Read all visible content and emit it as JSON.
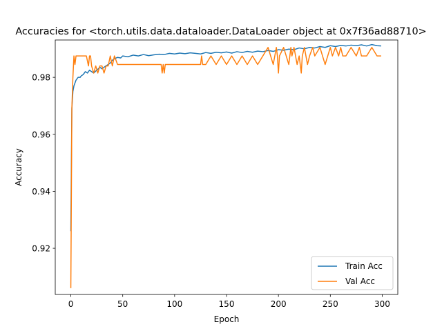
{
  "chart_data": {
    "type": "line",
    "title": "Accuracies for <torch.utils.data.dataloader.DataLoader object at 0x7f36ad88710>",
    "xlabel": "Epoch",
    "ylabel": "Accuracy",
    "xlim": [
      -15,
      315
    ],
    "ylim": [
      0.9038,
      0.9931
    ],
    "xticks": [
      0,
      50,
      100,
      150,
      200,
      250,
      300
    ],
    "xtick_labels": [
      "0",
      "50",
      "100",
      "150",
      "200",
      "250",
      "300"
    ],
    "yticks": [
      0.92,
      0.94,
      0.96,
      0.98
    ],
    "ytick_labels": [
      "0.92",
      "0.94",
      "0.96",
      "0.98"
    ],
    "grid": false,
    "legend_position": "lower right",
    "series": [
      {
        "name": "Train Acc",
        "color": "#1f77b4",
        "x": [
          0,
          1,
          2,
          3,
          4,
          5,
          6,
          7,
          8,
          9,
          10,
          12,
          14,
          16,
          18,
          20,
          22,
          25,
          28,
          30,
          33,
          36,
          38,
          40,
          42,
          45,
          48,
          50,
          55,
          60,
          65,
          70,
          75,
          80,
          85,
          90,
          95,
          100,
          105,
          110,
          115,
          120,
          125,
          130,
          135,
          140,
          145,
          150,
          155,
          160,
          165,
          170,
          175,
          180,
          185,
          190,
          195,
          200,
          205,
          210,
          215,
          220,
          225,
          230,
          235,
          240,
          245,
          250,
          255,
          260,
          265,
          270,
          275,
          280,
          285,
          290,
          295,
          299
        ],
        "y": [
          0.926,
          0.969,
          0.975,
          0.977,
          0.978,
          0.979,
          0.9795,
          0.98,
          0.98,
          0.98,
          0.9805,
          0.981,
          0.982,
          0.9815,
          0.9825,
          0.982,
          0.9815,
          0.9825,
          0.9835,
          0.983,
          0.9838,
          0.9845,
          0.985,
          0.986,
          0.9865,
          0.987,
          0.9868,
          0.9875,
          0.9872,
          0.9878,
          0.9875,
          0.988,
          0.9876,
          0.9879,
          0.9881,
          0.988,
          0.9884,
          0.9882,
          0.9885,
          0.9883,
          0.9886,
          0.9884,
          0.9882,
          0.9887,
          0.9884,
          0.9888,
          0.9886,
          0.9889,
          0.9885,
          0.989,
          0.9887,
          0.9891,
          0.9888,
          0.9892,
          0.989,
          0.9894,
          0.9891,
          0.9897,
          0.9895,
          0.9899,
          0.9897,
          0.9903,
          0.99,
          0.9905,
          0.9903,
          0.9908,
          0.9905,
          0.9911,
          0.9908,
          0.9912,
          0.991,
          0.9913,
          0.9911,
          0.9914,
          0.991,
          0.9915,
          0.9911,
          0.991
        ]
      },
      {
        "name": "Val Acc",
        "color": "#ff7f0e",
        "x": [
          0,
          1,
          2,
          3,
          4,
          5,
          6,
          7,
          8,
          10,
          12,
          15,
          17,
          18,
          19,
          20,
          22,
          24,
          26,
          28,
          30,
          32,
          34,
          36,
          38,
          40,
          42,
          45,
          50,
          60,
          70,
          80,
          87,
          88,
          89,
          90,
          91,
          95,
          100,
          110,
          120,
          125,
          126,
          127,
          130,
          135,
          140,
          145,
          150,
          155,
          160,
          165,
          170,
          175,
          180,
          185,
          190,
          195,
          198,
          199,
          200,
          201,
          205,
          210,
          212,
          213,
          215,
          218,
          220,
          222,
          223,
          225,
          228,
          230,
          233,
          235,
          240,
          245,
          250,
          252,
          255,
          258,
          260,
          262,
          265,
          270,
          275,
          278,
          280,
          285,
          290,
          295,
          299
        ],
        "y": [
          0.906,
          0.969,
          0.98,
          0.9875,
          0.9845,
          0.9875,
          0.9875,
          0.9875,
          0.9875,
          0.9875,
          0.9875,
          0.9875,
          0.984,
          0.9875,
          0.9875,
          0.984,
          0.9815,
          0.984,
          0.9815,
          0.984,
          0.984,
          0.9815,
          0.984,
          0.984,
          0.9875,
          0.984,
          0.9875,
          0.9845,
          0.9845,
          0.9845,
          0.9845,
          0.9845,
          0.9845,
          0.9815,
          0.9845,
          0.9815,
          0.9845,
          0.9845,
          0.9845,
          0.9845,
          0.9845,
          0.9845,
          0.9875,
          0.9845,
          0.9845,
          0.9875,
          0.9845,
          0.9875,
          0.9845,
          0.9875,
          0.9845,
          0.9875,
          0.9845,
          0.9875,
          0.9845,
          0.9875,
          0.9905,
          0.9845,
          0.9905,
          0.9875,
          0.9815,
          0.9875,
          0.9905,
          0.9845,
          0.9905,
          0.9875,
          0.9905,
          0.9845,
          0.9875,
          0.9815,
          0.9875,
          0.9905,
          0.9845,
          0.9875,
          0.9905,
          0.9875,
          0.9905,
          0.9845,
          0.9905,
          0.9875,
          0.9905,
          0.9875,
          0.9905,
          0.9875,
          0.9875,
          0.9905,
          0.9875,
          0.9905,
          0.9875,
          0.9875,
          0.9905,
          0.9875,
          0.9875
        ]
      }
    ]
  }
}
